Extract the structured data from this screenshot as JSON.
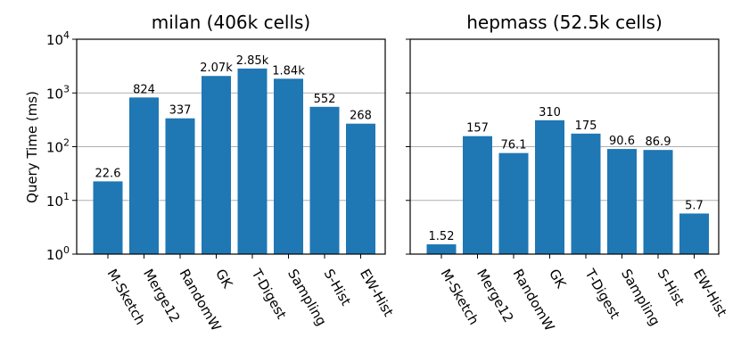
{
  "chart_data": [
    {
      "type": "bar",
      "title": "milan (406k cells)",
      "ylabel": "Query Time (ms)",
      "yscale": "log",
      "ylim": [
        1,
        10000
      ],
      "grid": "y",
      "categories": [
        "M-Sketch",
        "Merge12",
        "RandomW",
        "GK",
        "T-Digest",
        "Sampling",
        "S-Hist",
        "EW-Hist"
      ],
      "values": [
        22.6,
        824,
        337,
        2070,
        2850,
        1840,
        552,
        268
      ],
      "value_labels": [
        "22.6",
        "824",
        "337",
        "2.07k",
        "2.85k",
        "1.84k",
        "552",
        "268"
      ],
      "color": "#1f77b4"
    },
    {
      "type": "bar",
      "title": "hepmass (52.5k cells)",
      "ylabel": "",
      "yscale": "log",
      "ylim": [
        1,
        10000
      ],
      "grid": "y",
      "categories": [
        "M-Sketch",
        "Merge12",
        "RandomW",
        "GK",
        "T-Digest",
        "Sampling",
        "S-Hist",
        "EW-Hist"
      ],
      "values": [
        1.52,
        157,
        76.1,
        310,
        175,
        90.6,
        86.9,
        5.7
      ],
      "value_labels": [
        "1.52",
        "157",
        "76.1",
        "310",
        "175",
        "90.6",
        "86.9",
        "5.7"
      ],
      "color": "#1f77b4"
    }
  ],
  "y_ticks": [
    {
      "value": 1,
      "base": "10",
      "exp": "0"
    },
    {
      "value": 10,
      "base": "10",
      "exp": "1"
    },
    {
      "value": 100,
      "base": "10",
      "exp": "2"
    },
    {
      "value": 1000,
      "base": "10",
      "exp": "3"
    },
    {
      "value": 10000,
      "base": "10",
      "exp": "4"
    }
  ]
}
